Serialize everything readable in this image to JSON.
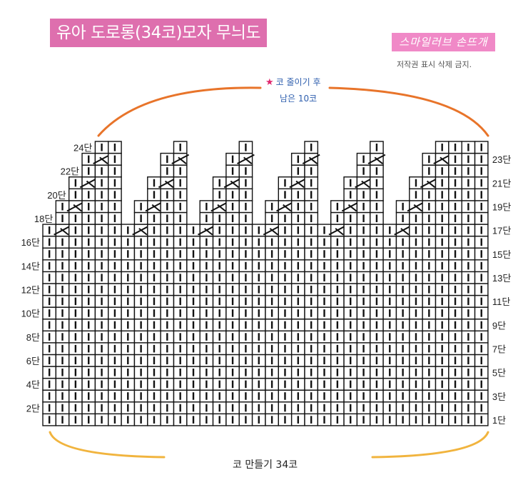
{
  "title": "유아 도로롱(34코)모자 무늬도안",
  "brand": "스마일러브 손뜨개",
  "copyright": "저작권 표시 삭제 금지.",
  "top_note": {
    "star": "★",
    "line1": "코 줄이기 후",
    "line2": "남은 10코"
  },
  "bottom_note": "코 만들기 34코",
  "colors": {
    "title_bg": "#de6fae",
    "brand_bg": "#f089c7",
    "top_arc": "#e8742a",
    "bottom_arc": "#f1b43e",
    "note_text": "#2f5fae",
    "star": "#e0286e"
  },
  "chart_data": {
    "type": "knitting-chart",
    "columns": 34,
    "rows": 24,
    "cast_on_stitches": 34,
    "remaining_stitches": 10,
    "full_rows": 16,
    "decrease_rows": [
      17,
      19,
      21,
      23
    ],
    "left_row_labels": [
      "2단",
      "4단",
      "6단",
      "8단",
      "10단",
      "12단",
      "14단",
      "16단",
      "18단",
      "20단",
      "22단",
      "24단"
    ],
    "right_row_labels": [
      "1단",
      "3단",
      "5단",
      "7단",
      "9단",
      "11단",
      "13단",
      "15단",
      "17단",
      "19단",
      "21단",
      "23단"
    ],
    "symbols": {
      "knit": "|",
      "decrease": "left-leaning decrease (λ)"
    }
  }
}
